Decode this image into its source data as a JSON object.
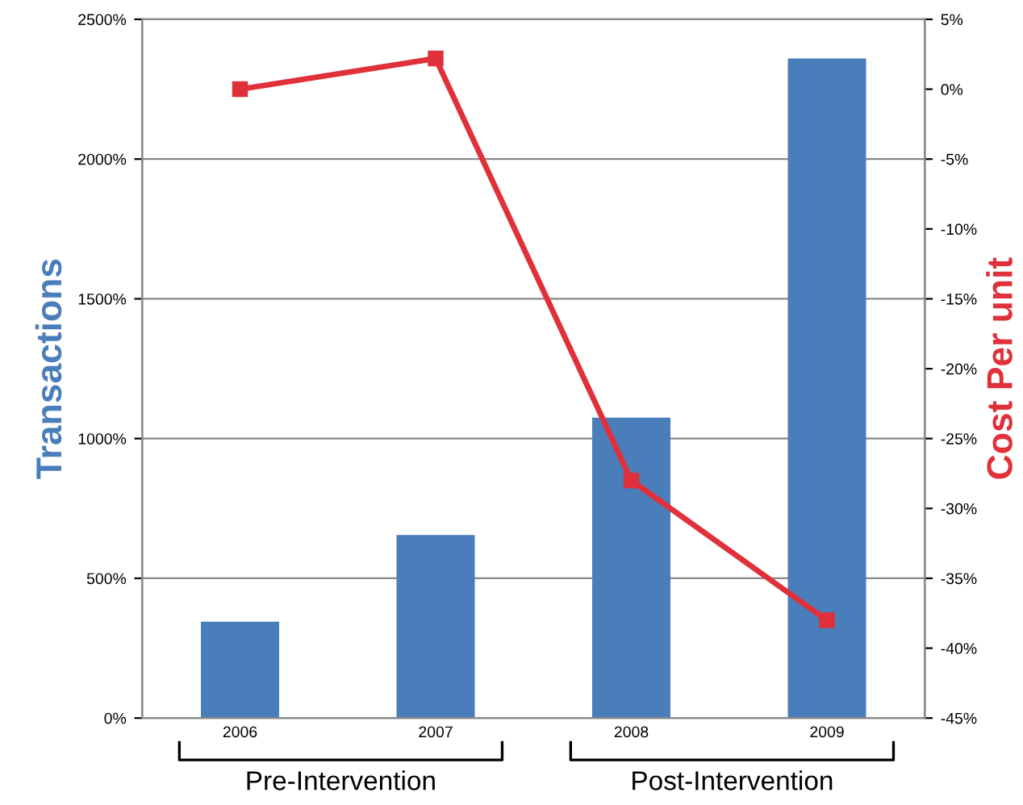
{
  "chart_data": {
    "type": "bar",
    "categories": [
      "2006",
      "2007",
      "2008",
      "2009"
    ],
    "ylabel": "Transactions",
    "y2label": "Cost Per unit",
    "series": [
      {
        "color": "#4a7ebb",
        "values": [
          345,
          655,
          1075,
          2360
        ]
      },
      {
        "type": "line",
        "axis": "y2",
        "color": "#e0303a",
        "marker": "square",
        "line_style": "solid",
        "values": [
          0,
          2.2,
          -28,
          -38
        ]
      }
    ],
    "ylim": [
      0,
      2500
    ],
    "yticks": [
      {
        "value": 0,
        "label": "0%"
      },
      {
        "value": 500,
        "label": "500%"
      },
      {
        "value": 1000,
        "label": "1000%"
      },
      {
        "value": 1500,
        "label": "1500%"
      },
      {
        "value": 2000,
        "label": "2000%"
      },
      {
        "value": 2500,
        "label": "2500%"
      }
    ],
    "y2lim": [
      -45,
      5
    ],
    "y2ticks": [
      {
        "value": 5,
        "label": "5%"
      },
      {
        "value": 0,
        "label": "0%"
      },
      {
        "value": -5,
        "label": "-5%"
      },
      {
        "value": -10,
        "label": "-10%"
      },
      {
        "value": -15,
        "label": "-15%"
      },
      {
        "value": -20,
        "label": "-20%"
      },
      {
        "value": -25,
        "label": "-25%"
      },
      {
        "value": -30,
        "label": "-30%"
      },
      {
        "value": -35,
        "label": "-35%"
      },
      {
        "value": -40,
        "label": "-40%"
      },
      {
        "value": -45,
        "label": "-45%"
      }
    ],
    "grid": "y",
    "annotations": [
      "Pre-Intervention",
      "Post-Intervention"
    ]
  }
}
